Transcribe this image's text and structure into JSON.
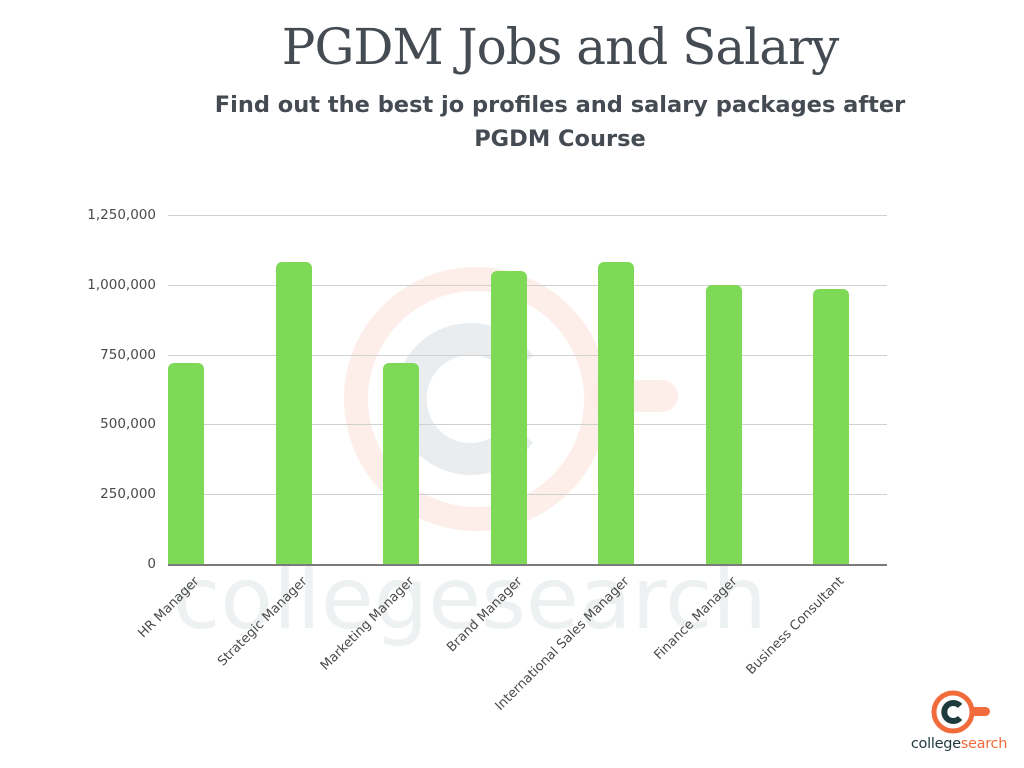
{
  "header": {
    "title": "PGDM Jobs and Salary",
    "subtitle_line1": "Find out the best jo profiles  and salary packages after",
    "subtitle_line2": "PGDM Course"
  },
  "logo": {
    "icon": "c-mug-icon",
    "text_part1": "college",
    "text_part2": "search",
    "colors": {
      "ring": "#f26b3a",
      "letter": "#1f3a3d"
    }
  },
  "watermark": {
    "text": "collegesearch"
  },
  "colors": {
    "bar": "#7ed957",
    "text": "#454b52",
    "grid": "#d0d0d0"
  },
  "chart_data": {
    "type": "bar",
    "title": "PGDM Jobs and Salary",
    "subtitle": "Find out the best jo profiles  and salary packages after PGDM Course",
    "xlabel": "",
    "ylabel": "",
    "categories": [
      "HR Manager",
      "Strategic Manager",
      "Marketing Manager",
      "Brand Manager",
      "International Sales Manager",
      "Finance Manager",
      "Business Consultant"
    ],
    "values": [
      720000,
      1080000,
      720000,
      1050000,
      1080000,
      1000000,
      985000
    ],
    "ylim": [
      0,
      1250000
    ],
    "yticks": [
      0,
      250000,
      500000,
      750000,
      1000000,
      1250000
    ],
    "ytick_labels": [
      "0",
      "250,000",
      "500,000",
      "750,000",
      "1,000,000",
      "1,250,000"
    ],
    "grid": true,
    "legend": null,
    "x_label_rotation": -45
  }
}
